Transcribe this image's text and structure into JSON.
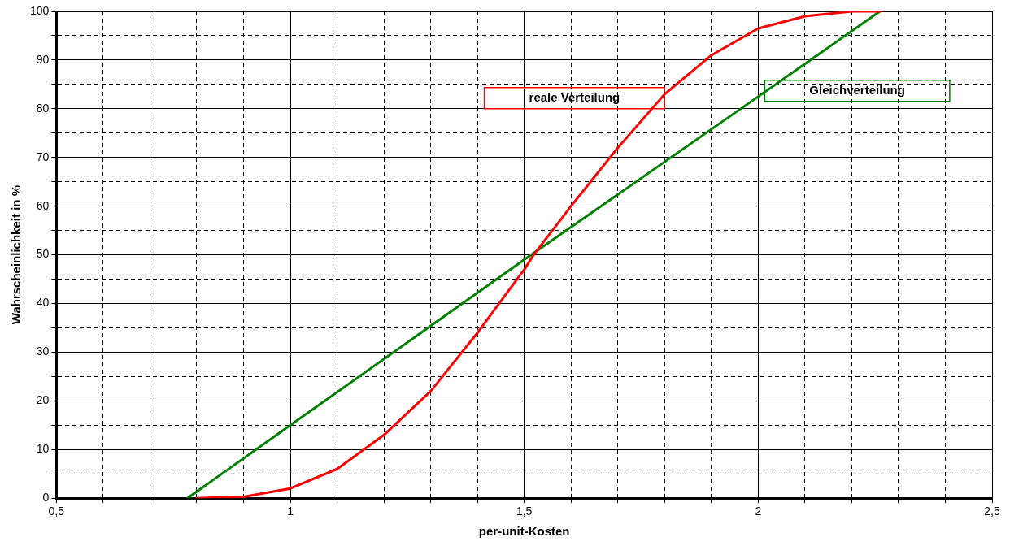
{
  "chart_data": {
    "type": "line",
    "xlabel": "per-unit-Kosten",
    "ylabel": "Wahrscheinlichkeit in %",
    "xlim": [
      0.5,
      2.5
    ],
    "xticks": [
      {
        "value": 0.5,
        "label": "0,5"
      },
      {
        "value": 0.6,
        "label": null
      },
      {
        "value": 0.7,
        "label": null
      },
      {
        "value": 0.8,
        "label": null
      },
      {
        "value": 0.9,
        "label": null
      },
      1,
      {
        "value": 1.1,
        "label": null
      },
      {
        "value": 1.2,
        "label": null
      },
      {
        "value": 1.3,
        "label": null
      },
      {
        "value": 1.4,
        "label": null
      },
      {
        "value": 1.5,
        "label": "1,5"
      },
      {
        "value": 1.6,
        "label": null
      },
      {
        "value": 1.7,
        "label": null
      },
      {
        "value": 1.8,
        "label": null
      },
      {
        "value": 1.9,
        "label": null
      },
      2,
      {
        "value": 2.1,
        "label": null
      },
      {
        "value": 2.2,
        "label": null
      },
      {
        "value": 2.3,
        "label": null
      },
      {
        "value": 2.4,
        "label": null
      },
      {
        "value": 2.5,
        "label": "2,5"
      }
    ],
    "ylim": [
      0,
      100
    ],
    "yticks": [
      0,
      {
        "value": 5,
        "label": null
      },
      10,
      {
        "value": 15,
        "label": null
      },
      20,
      {
        "value": 25,
        "label": null
      },
      30,
      {
        "value": 35,
        "label": null
      },
      40,
      {
        "value": 45,
        "label": null
      },
      50,
      {
        "value": 55,
        "label": null
      },
      60,
      {
        "value": 65,
        "label": null
      },
      70,
      {
        "value": 75,
        "label": null
      },
      80,
      {
        "value": 85,
        "label": null
      },
      90,
      {
        "value": 95,
        "label": null
      },
      100
    ],
    "grid": true,
    "legend": false,
    "marker": "none",
    "line_style": "solid",
    "series": [
      {
        "name": "reale Verteilung",
        "color": "#ff0000",
        "x": [
          0.8,
          0.9,
          1.0,
          1.1,
          1.2,
          1.3,
          1.4,
          1.5,
          1.52,
          1.6,
          1.7,
          1.8,
          1.9,
          2.0,
          2.1,
          2.2,
          2.26
        ],
        "values": [
          0,
          0.3,
          2,
          6,
          13,
          22,
          34,
          47,
          50,
          60,
          72,
          83,
          91,
          96.5,
          99,
          100,
          100
        ]
      },
      {
        "name": "Gleichverteilung",
        "color": "#008000",
        "x": [
          0.78,
          1.0,
          1.5,
          2.0,
          2.26
        ],
        "values": [
          0,
          15,
          49,
          82.5,
          100
        ]
      }
    ]
  }
}
